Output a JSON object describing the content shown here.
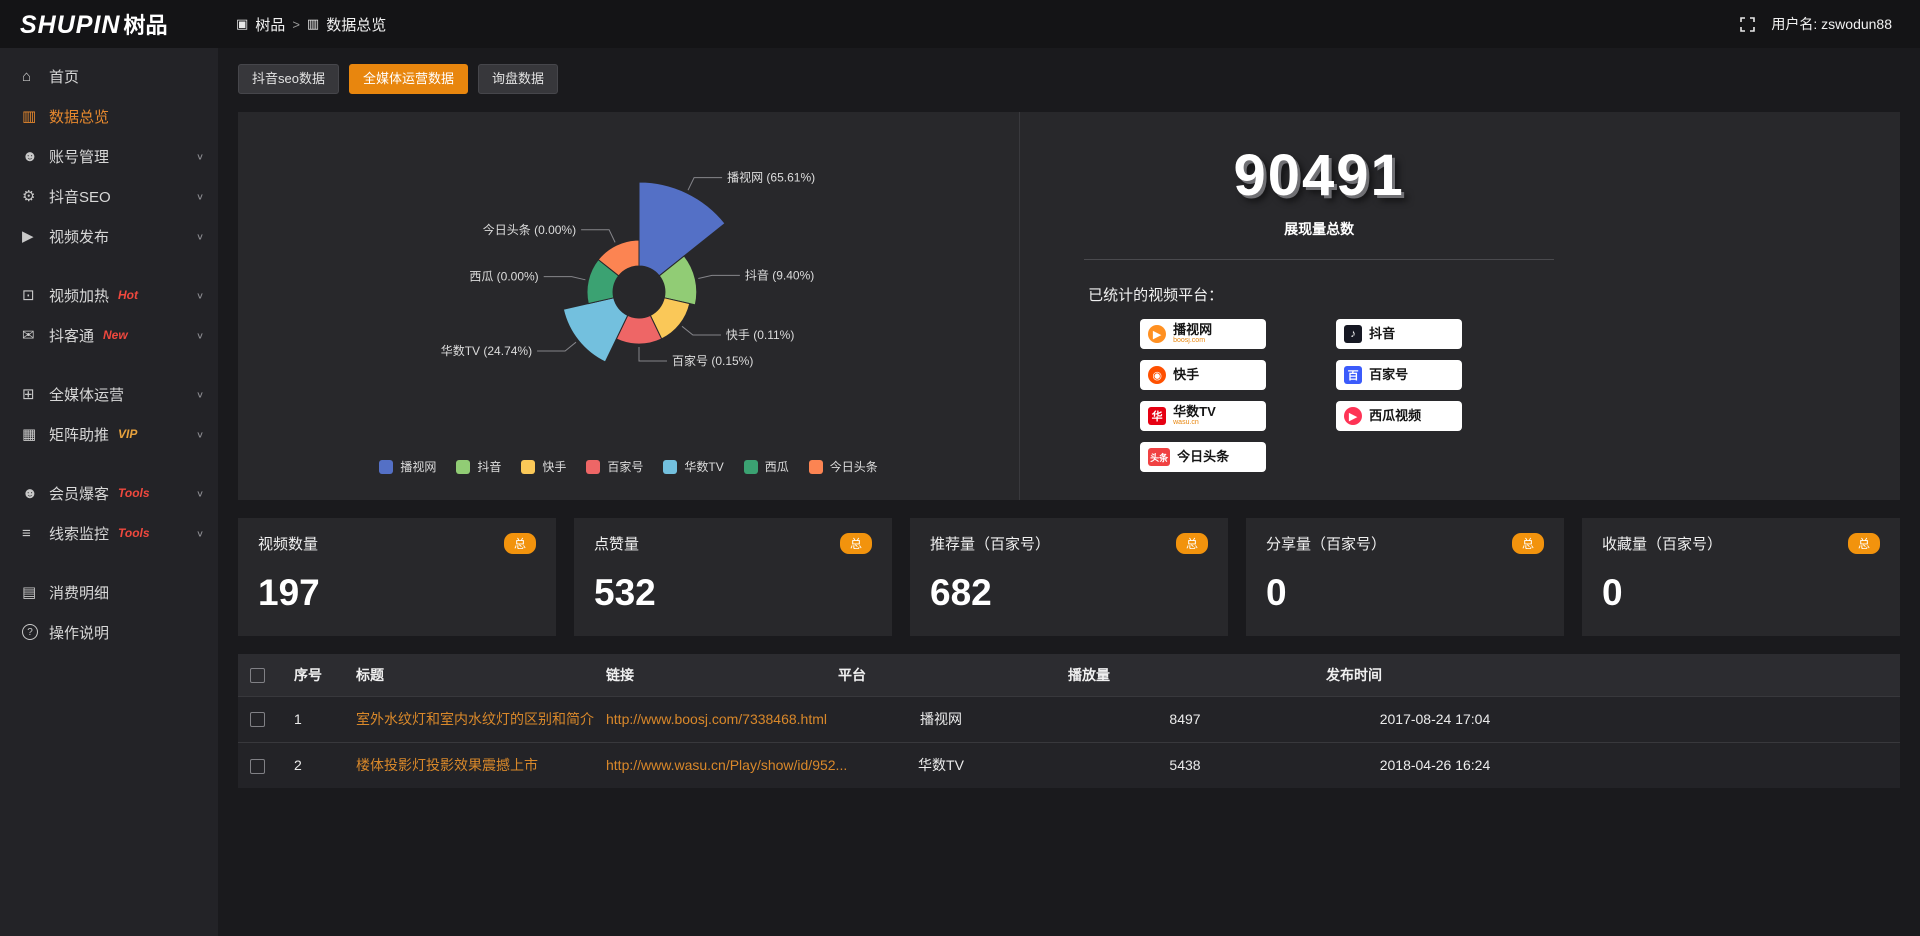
{
  "header": {
    "logo": "SHUPIN",
    "logo_cn": "树品",
    "breadcrumb": {
      "root_icon": "▣",
      "root": "树品",
      "separator": ">",
      "current_icon": "▥",
      "current": "数据总览"
    },
    "username": "用户名: zswodun88"
  },
  "sidebar": {
    "chevron_glyph": "∨",
    "items": [
      {
        "id": "home",
        "icon": "home-icon",
        "glyph": "⌂",
        "label": "首页"
      },
      {
        "id": "data-overview",
        "icon": "bar-chart-icon",
        "glyph": "▥",
        "label": "数据总览",
        "active": true
      },
      {
        "id": "account-management",
        "icon": "user-icon",
        "glyph": "☻",
        "label": "账号管理",
        "chevron": true
      },
      {
        "id": "douyin-seo",
        "icon": "gear-icon",
        "glyph": "⚙",
        "label": "抖音SEO",
        "chevron": true
      },
      {
        "id": "video-publish",
        "icon": "video-icon",
        "glyph": "▶",
        "label": "视频发布",
        "chevron": true
      },
      {
        "id": "video-heat",
        "icon": "monitor-icon",
        "glyph": "⊡",
        "label": "视频加热",
        "tag": "Hot",
        "tag_color": "#f0483e",
        "chevron": true,
        "gap_before": true
      },
      {
        "id": "doukentong",
        "icon": "chat-icon",
        "glyph": "✉",
        "label": "抖客通",
        "tag": "New",
        "tag_color": "#f0483e",
        "chevron": true
      },
      {
        "id": "media-operations",
        "icon": "screen-icon",
        "glyph": "⊞",
        "label": "全媒体运营",
        "chevron": true,
        "gap_before": true
      },
      {
        "id": "matrix-boost",
        "icon": "grid-icon",
        "glyph": "▦",
        "label": "矩阵助推",
        "tag": "VIP",
        "tag_color": "#e8a23d",
        "chevron": true
      },
      {
        "id": "member-burst",
        "icon": "member-icon",
        "glyph": "☻",
        "label": "会员爆客",
        "tag": "Tools",
        "tag_color": "#f0483e",
        "chevron": true,
        "gap_before": true
      },
      {
        "id": "leads-monitor",
        "icon": "sliders-icon",
        "glyph": "≡",
        "label": "线索监控",
        "tag": "Tools",
        "tag_color": "#f0483e",
        "chevron": true
      },
      {
        "id": "consumption-detail",
        "icon": "bill-icon",
        "glyph": "▤",
        "label": "消费明细",
        "gap_before": true
      },
      {
        "id": "instructions",
        "icon": "help-icon",
        "glyph": "?",
        "label": "操作说明"
      }
    ]
  },
  "tabs": [
    {
      "id": "douyin-seo-data",
      "label": "抖音seo数据",
      "active": false
    },
    {
      "id": "media-operation-data",
      "label": "全媒体运营数据",
      "active": true
    },
    {
      "id": "inquiry-data",
      "label": "询盘数据",
      "active": false
    }
  ],
  "chart_data": {
    "type": "pie",
    "variant": "nightingale-rose",
    "unit": "percent",
    "legend_position": "bottom",
    "label_format": "{name} ({percent}%)",
    "items": [
      {
        "name": "播视网",
        "percent": 65.61,
        "color": "#5470c6"
      },
      {
        "name": "抖音",
        "percent": 9.4,
        "color": "#91cc75"
      },
      {
        "name": "快手",
        "percent": 0.11,
        "color": "#fac858"
      },
      {
        "name": "百家号",
        "percent": 0.15,
        "color": "#ee6666"
      },
      {
        "name": "华数TV",
        "percent": 24.74,
        "color": "#73c0de"
      },
      {
        "name": "西瓜",
        "percent": 0.0,
        "color": "#3ba272"
      },
      {
        "name": "今日头条",
        "percent": 0.0,
        "color": "#fc8452"
      }
    ]
  },
  "summary": {
    "total_value": "90491",
    "total_label": "展现量总数",
    "platforms_title": "已统计的视频平台：",
    "platforms": [
      {
        "name": "播视网",
        "sub": "boosj.com",
        "glyph": "▶",
        "color": "#ff9021",
        "round": true
      },
      {
        "name": "抖音",
        "glyph": "♪",
        "color": "#161823"
      },
      {
        "name": "快手",
        "glyph": "◉",
        "color": "#ff5000",
        "round": true
      },
      {
        "name": "百家号",
        "glyph": "百",
        "color": "#3b5bfb"
      },
      {
        "name": "华数TV",
        "sub": "wasu.cn",
        "glyph": "华",
        "color": "#e60012"
      },
      {
        "name": "西瓜视频",
        "glyph": "▶",
        "color": "#fe3355",
        "round": true
      },
      {
        "name": "今日头条",
        "glyph": "头条",
        "color": "#f04142"
      }
    ]
  },
  "stat_cards": [
    {
      "label": "视频数量",
      "badge": "总",
      "value": "197"
    },
    {
      "label": "点赞量",
      "badge": "总",
      "value": "532"
    },
    {
      "label": "推荐量（百家号）",
      "badge": "总",
      "value": "682"
    },
    {
      "label": "分享量（百家号）",
      "badge": "总",
      "value": "0"
    },
    {
      "label": "收藏量（百家号）",
      "badge": "总",
      "value": "0"
    }
  ],
  "table": {
    "headers": [
      "序号",
      "标题",
      "链接",
      "平台",
      "播放量",
      "发布时间"
    ],
    "rows": [
      {
        "index": "1",
        "title": "室外水纹灯和室内水纹灯的区别和简介",
        "link": "http://www.boosj.com/7338468.html",
        "platform": "播视网",
        "plays": "8497",
        "published": "2017-08-24 17:04"
      },
      {
        "index": "2",
        "title": "楼体投影灯投影效果震撼上市",
        "link": "http://www.wasu.cn/Play/show/id/952...",
        "platform": "华数TV",
        "plays": "5438",
        "published": "2018-04-26 16:24"
      }
    ]
  }
}
